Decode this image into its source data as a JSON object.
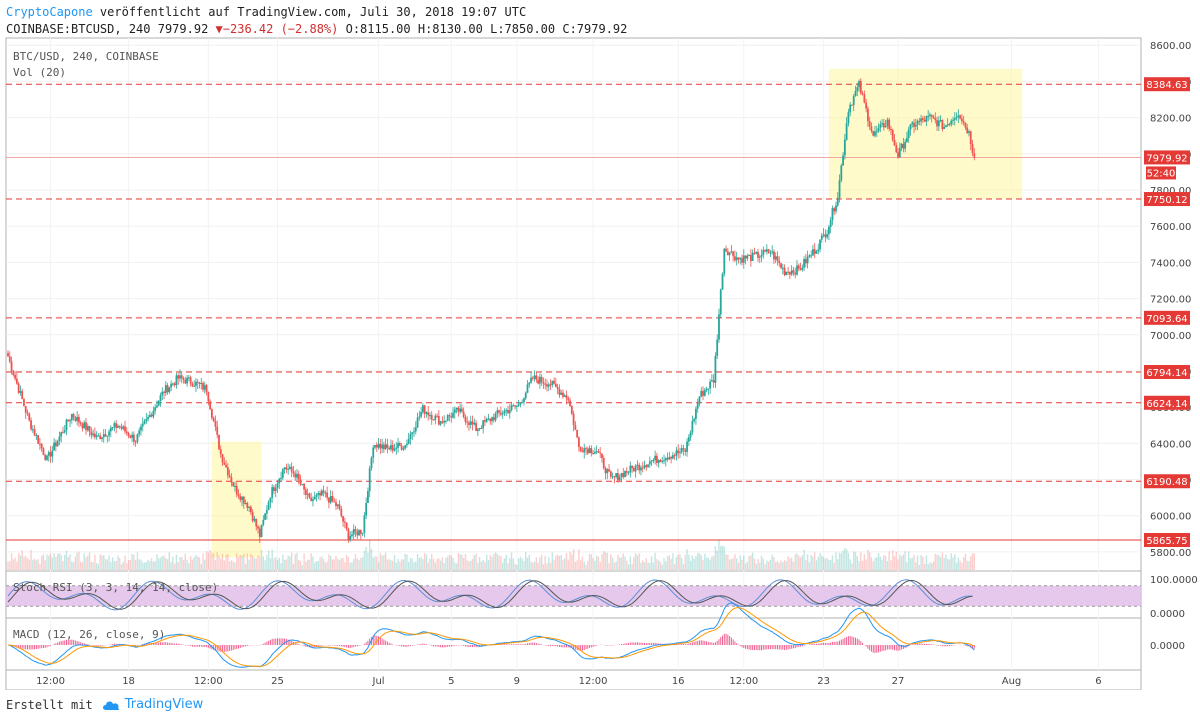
{
  "header": {
    "author": "CryptoCapone",
    "published_text": " veröffentlicht auf TradingView.com, Juli 30, 2018 19:07 UTC",
    "symbol_full": "COINBASE:BTCUSD, 240",
    "last": "7979.92",
    "change": "−236.42 (−2.88%)",
    "ohlc": "O:8115.00 H:8130.00 L:7850.00 C:7979.92"
  },
  "footer": {
    "created_with": "Erstellt mit",
    "brand": "TradingView"
  },
  "colors": {
    "up": "#26a69a",
    "down": "#ef5350",
    "hline": "#e53935",
    "box": "#fff59d",
    "rsi_band": "#e1bee7"
  },
  "chart_data": {
    "type": "candlestick",
    "title": "BTC/USD, 240, COINBASE",
    "volume_label": "Vol (20)",
    "y_axis": {
      "min": 5700,
      "max": 8640,
      "ticks": [
        5800,
        6000,
        6200,
        6400,
        6600,
        6800,
        7000,
        7200,
        7400,
        7600,
        7800,
        8000,
        8200,
        8400,
        8600
      ]
    },
    "x_ticks": [
      "12:00",
      "18",
      "12:00",
      "25",
      "Jul",
      "5",
      "9",
      "12:00",
      "16",
      "12:00",
      "23",
      "27",
      "Aug",
      "6"
    ],
    "last_price_tag": "7979.92",
    "countdown_tag": "52:40",
    "levels": [
      8384.63,
      7750.12,
      7093.64,
      6794.14,
      6624.14,
      6190.48,
      5865.75
    ],
    "boxes": [
      {
        "start_idx": 115,
        "end_idx": 143,
        "low": 5770,
        "high": 6410
      },
      {
        "start_idx": 463,
        "end_idx": 572,
        "low": 7750,
        "high": 8470
      }
    ],
    "close_anchors": [
      [
        0,
        6880
      ],
      [
        12,
        6520
      ],
      [
        22,
        6310
      ],
      [
        36,
        6560
      ],
      [
        50,
        6430
      ],
      [
        62,
        6500
      ],
      [
        72,
        6420
      ],
      [
        88,
        6690
      ],
      [
        96,
        6760
      ],
      [
        104,
        6740
      ],
      [
        112,
        6700
      ],
      [
        120,
        6340
      ],
      [
        128,
        6150
      ],
      [
        136,
        6050
      ],
      [
        142,
        5890
      ],
      [
        148,
        6120
      ],
      [
        156,
        6270
      ],
      [
        162,
        6230
      ],
      [
        170,
        6080
      ],
      [
        178,
        6120
      ],
      [
        186,
        6050
      ],
      [
        192,
        5890
      ],
      [
        200,
        5920
      ],
      [
        206,
        6400
      ],
      [
        214,
        6370
      ],
      [
        224,
        6390
      ],
      [
        234,
        6590
      ],
      [
        244,
        6520
      ],
      [
        254,
        6580
      ],
      [
        264,
        6480
      ],
      [
        276,
        6560
      ],
      [
        288,
        6610
      ],
      [
        296,
        6760
      ],
      [
        306,
        6730
      ],
      [
        316,
        6650
      ],
      [
        322,
        6380
      ],
      [
        332,
        6360
      ],
      [
        340,
        6200
      ],
      [
        350,
        6250
      ],
      [
        362,
        6300
      ],
      [
        372,
        6330
      ],
      [
        382,
        6360
      ],
      [
        390,
        6660
      ],
      [
        398,
        6750
      ],
      [
        404,
        7480
      ],
      [
        412,
        7420
      ],
      [
        420,
        7430
      ],
      [
        430,
        7460
      ],
      [
        438,
        7350
      ],
      [
        446,
        7360
      ],
      [
        456,
        7480
      ],
      [
        462,
        7580
      ],
      [
        468,
        7770
      ],
      [
        474,
        8250
      ],
      [
        480,
        8380
      ],
      [
        488,
        8100
      ],
      [
        496,
        8180
      ],
      [
        502,
        7990
      ],
      [
        510,
        8160
      ],
      [
        520,
        8200
      ],
      [
        528,
        8150
      ],
      [
        536,
        8230
      ],
      [
        542,
        8115
      ],
      [
        545,
        7979.92
      ]
    ],
    "volume_scale_max": 1.0,
    "stoch_rsi": {
      "label": "Stoch RSI (3, 3, 14, 14, close)",
      "upper_tick": "100.0000",
      "lower_tick": "0.0000",
      "band": [
        20,
        80
      ]
    },
    "macd": {
      "label": "MACD (12, 26, close, 9)",
      "zero_tick": "0.0000"
    }
  }
}
